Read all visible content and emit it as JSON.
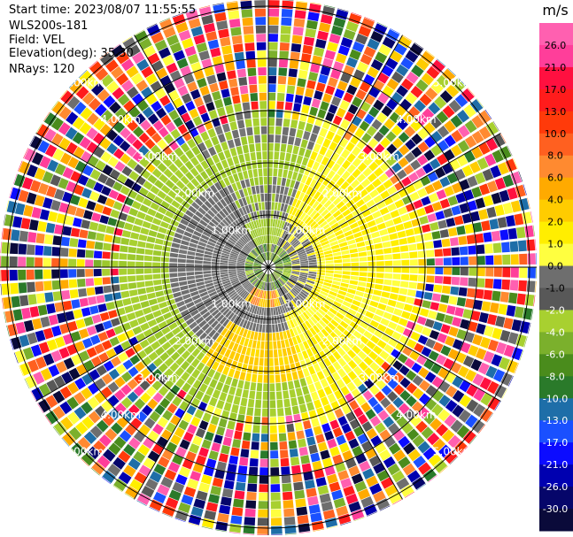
{
  "header": {
    "start_time": "Start time: 2023/08/07 11:55:55",
    "instrument": "WLS200s-181",
    "field": "Field: VEL",
    "elevation": "Elevation(deg): 35.30",
    "nrays": "NRays: 120"
  },
  "ppi": {
    "range_ring_labels": [
      "1.00km",
      "2.00km",
      "3.00km",
      "4.00km",
      "5.00km"
    ],
    "n_rays": 120
  },
  "colorbar": {
    "unit": "m/s",
    "tick_labels": [
      "26.0",
      "21.0",
      "17.0",
      "13.0",
      "10.0",
      "8.0",
      "6.0",
      "4.0",
      "2.0",
      "1.0",
      "0.0",
      "-1.0",
      "-2.0",
      "-4.0",
      "-6.0",
      "-8.0",
      "-10.0",
      "-13.0",
      "-17.0",
      "-21.0",
      "-26.0",
      "-30.0"
    ],
    "colors": [
      "#ff60b0",
      "#ff3e9a",
      "#ff1040",
      "#ff1c1c",
      "#ff3a0a",
      "#ff6020",
      "#ff8a30",
      "#ffaa00",
      "#ffcc00",
      "#ffee00",
      "#ffff40",
      "#6e6e6e",
      "#585858",
      "#a8d030",
      "#7bb02c",
      "#4a8c1c",
      "#2a7a2a",
      "#1e6ea8",
      "#1a50ff",
      "#0c0cff",
      "#0000b0",
      "#06066a",
      "#0a0a3a"
    ]
  }
}
